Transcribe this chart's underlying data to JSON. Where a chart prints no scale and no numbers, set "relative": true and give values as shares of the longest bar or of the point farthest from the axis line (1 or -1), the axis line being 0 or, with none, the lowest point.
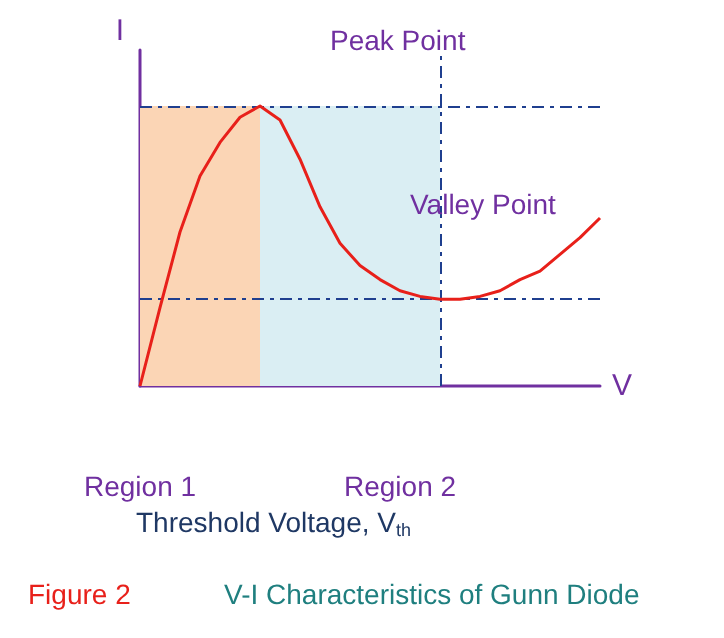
{
  "chart_data": {
    "type": "line",
    "relative": true,
    "xlabel": "V",
    "ylabel": "I",
    "categories": [
      null,
      null,
      null,
      null,
      null,
      null,
      null,
      null,
      null,
      null,
      null,
      null,
      null,
      null,
      null,
      null,
      null,
      null,
      null,
      null,
      null,
      null,
      null,
      null
    ],
    "series": [
      {
        "color": "#e8201a",
        "values": [
          0,
          0.28,
          0.55,
          0.75,
          0.87,
          0.96,
          1,
          0.95,
          0.81,
          0.64,
          0.51,
          0.43,
          0.38,
          0.34,
          0.32,
          0.31,
          0.31,
          0.32,
          0.34,
          0.38,
          0.41,
          0.47,
          0.53,
          0.6
        ]
      }
    ],
    "ref_lines": [
      {
        "axis": "y",
        "value": 1,
        "color": "#1f3f8f",
        "line_style": "dashed"
      },
      {
        "axis": "y",
        "value": 0.31,
        "color": "#1f3f8f",
        "line_style": "dashed"
      }
    ],
    "annotations": [
      "Peak Point",
      "Valley Point",
      "Region 1",
      "Region 2",
      "Threshold Voltage, V$_{th}$",
      "Figure 2",
      "V-I Characteristics of Gunn Diode"
    ],
    "grid": false,
    "marker": "none",
    "line_style": "solid"
  }
}
